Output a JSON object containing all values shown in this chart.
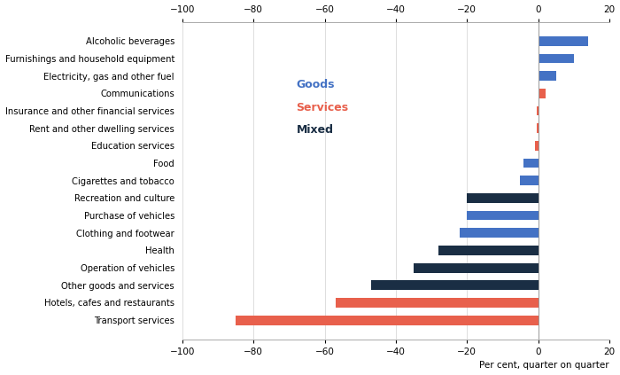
{
  "categories": [
    "Transport services",
    "Hotels, cafes and restaurants",
    "Other goods and services",
    "Operation of vehicles",
    "Health",
    "Clothing and footwear",
    "Purchase of vehicles",
    "Recreation and culture",
    "Cigarettes and tobacco",
    "Food",
    "Education services",
    "Rent and other dwelling services",
    "Insurance and other financial services",
    "Communications",
    "Electricity, gas and other fuel",
    "Furnishings and household equipment",
    "Alcoholic beverages"
  ],
  "values": [
    -85,
    -57,
    -47,
    -35,
    -28,
    -22,
    -20,
    -20,
    -5,
    -4,
    -1,
    -0.5,
    -0.5,
    2,
    5,
    10,
    14
  ],
  "colors": [
    "#e8604c",
    "#e8604c",
    "#1a2e44",
    "#1a2e44",
    "#1a2e44",
    "#4472c4",
    "#4472c4",
    "#1a2e44",
    "#4472c4",
    "#4472c4",
    "#e8604c",
    "#e8604c",
    "#e8604c",
    "#e8604c",
    "#4472c4",
    "#4472c4",
    "#4472c4"
  ],
  "xlim": [
    -100,
    20
  ],
  "xticks": [
    -100,
    -80,
    -60,
    -40,
    -20,
    0,
    20
  ],
  "xlabel": "Per cent, quarter on quarter",
  "legend_labels": [
    "Goods",
    "Services",
    "Mixed"
  ],
  "legend_colors": [
    "#4472c4",
    "#e8604c",
    "#1a2e44"
  ],
  "background_color": "#ffffff",
  "bar_height": 0.55,
  "figsize": [
    7.0,
    4.23
  ],
  "dpi": 100
}
